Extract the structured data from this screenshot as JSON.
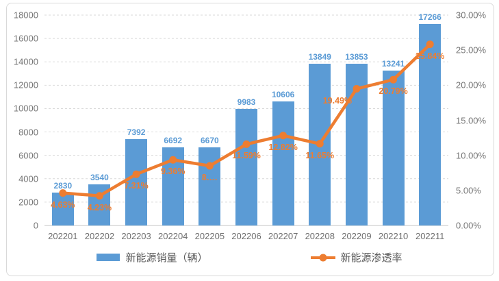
{
  "chart_data": {
    "type": "combo",
    "categories": [
      "202201",
      "202202",
      "202203",
      "202204",
      "202205",
      "202206",
      "202207",
      "202208",
      "202209",
      "202210",
      "202211"
    ],
    "series": [
      {
        "name": "新能源销量（辆）",
        "type": "bar",
        "axis": "left",
        "color": "#5b9bd5",
        "values": [
          2830,
          3540,
          7392,
          6692,
          6670,
          9983,
          10606,
          13849,
          13853,
          13241,
          17266
        ],
        "labels": [
          "2830",
          "3540",
          "7392",
          "6692",
          "6670",
          "9983",
          "10606",
          "13849",
          "13853",
          "13241",
          "17266"
        ]
      },
      {
        "name": "新能源渗透率",
        "type": "line",
        "axis": "right",
        "color": "#ed7d31",
        "values": [
          4.63,
          4.23,
          7.31,
          9.36,
          8.5,
          11.59,
          12.82,
          11.65,
          19.49,
          20.79,
          25.84
        ],
        "labels": [
          "4.63%",
          "4.23%",
          "7.31%",
          "9.36%",
          "8.…",
          "11.59%",
          "12.82%",
          "11.65%",
          "19.49%",
          "20.79%",
          "25.84%"
        ]
      }
    ],
    "left_axis": {
      "min": 0,
      "max": 18000,
      "step": 2000,
      "ticks": [
        "18000",
        "16000",
        "14000",
        "12000",
        "10000",
        "8000",
        "6000",
        "4000",
        "2000",
        "0"
      ]
    },
    "right_axis": {
      "min": 0,
      "max": 30,
      "step": 5,
      "ticks": [
        "30.00%",
        "25.00%",
        "20.00%",
        "15.00%",
        "10.00%",
        "5.00%",
        "0.00%"
      ]
    },
    "grid": "horizontal-dashed",
    "legend_position": "bottom",
    "colors": {
      "bar": "#5b9bd5",
      "line": "#ed7d31",
      "grid": "#d9d9d9",
      "axis_text": "#767676"
    }
  },
  "legend": {
    "sales_label": "新能源销量（辆）",
    "penetration_label": "新能源渗透率"
  }
}
